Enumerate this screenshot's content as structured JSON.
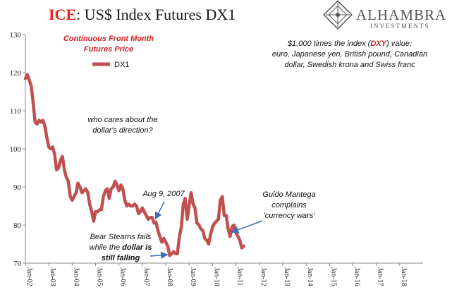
{
  "header": {
    "title_brand": "ICE",
    "title_rest": ": US$ Index Futures DX1"
  },
  "logo": {
    "name": "ALHAMBRA",
    "sub": "INVESTMENTS"
  },
  "notes": {
    "series_note_line1": "Continuous  Front Month",
    "series_note_line2": "Futures Price",
    "basket_line1_pre": "$1,000 times the index (",
    "basket_line1_dxy": "DXY",
    "basket_line1_post": ") value;",
    "basket_line2": "euro, Japanese yen, British pound, Canadian",
    "basket_line3": "dollar, Swedish krona and Swiss franc"
  },
  "chart_data": {
    "type": "line",
    "title": "ICE: US$ Index Futures DX1",
    "series": [
      {
        "name": "DX1",
        "color": "#c0504d",
        "points": [
          [
            "2002-01",
            118.5
          ],
          [
            "2002-02",
            119.5
          ],
          [
            "2002-03",
            118.0
          ],
          [
            "2002-04",
            116.5
          ],
          [
            "2002-05",
            112.0
          ],
          [
            "2002-06",
            107.0
          ],
          [
            "2002-07",
            106.5
          ],
          [
            "2002-08",
            107.5
          ],
          [
            "2002-09",
            107.0
          ],
          [
            "2002-10",
            107.5
          ],
          [
            "2002-11",
            106.0
          ],
          [
            "2002-12",
            103.0
          ],
          [
            "2003-01",
            100.5
          ],
          [
            "2003-02",
            100.0
          ],
          [
            "2003-03",
            100.5
          ],
          [
            "2003-04",
            98.5
          ],
          [
            "2003-05",
            94.5
          ],
          [
            "2003-06",
            95.0
          ],
          [
            "2003-07",
            97.0
          ],
          [
            "2003-08",
            98.0
          ],
          [
            "2003-09",
            94.5
          ],
          [
            "2003-10",
            92.5
          ],
          [
            "2003-11",
            91.5
          ],
          [
            "2003-12",
            87.5
          ],
          [
            "2004-01",
            86.5
          ],
          [
            "2004-02",
            87.5
          ],
          [
            "2004-03",
            88.5
          ],
          [
            "2004-04",
            91.0
          ],
          [
            "2004-05",
            90.0
          ],
          [
            "2004-06",
            88.5
          ],
          [
            "2004-07",
            89.0
          ],
          [
            "2004-08",
            89.5
          ],
          [
            "2004-09",
            88.5
          ],
          [
            "2004-10",
            85.5
          ],
          [
            "2004-11",
            83.5
          ],
          [
            "2004-12",
            81.0
          ],
          [
            "2005-01",
            83.5
          ],
          [
            "2005-02",
            83.5
          ],
          [
            "2005-03",
            84.0
          ],
          [
            "2005-04",
            84.0
          ],
          [
            "2005-05",
            87.5
          ],
          [
            "2005-06",
            89.0
          ],
          [
            "2005-07",
            89.5
          ],
          [
            "2005-08",
            87.0
          ],
          [
            "2005-09",
            89.5
          ],
          [
            "2005-10",
            90.0
          ],
          [
            "2005-11",
            91.5
          ],
          [
            "2005-12",
            90.5
          ],
          [
            "2006-01",
            89.0
          ],
          [
            "2006-02",
            90.5
          ],
          [
            "2006-03",
            89.5
          ],
          [
            "2006-04",
            86.5
          ],
          [
            "2006-05",
            85.0
          ],
          [
            "2006-06",
            85.5
          ],
          [
            "2006-07",
            85.0
          ],
          [
            "2006-08",
            85.0
          ],
          [
            "2006-09",
            85.5
          ],
          [
            "2006-10",
            85.0
          ],
          [
            "2006-11",
            83.0
          ],
          [
            "2006-12",
            83.5
          ],
          [
            "2007-01",
            84.5
          ],
          [
            "2007-02",
            83.5
          ],
          [
            "2007-03",
            82.5
          ],
          [
            "2007-04",
            81.5
          ],
          [
            "2007-05",
            82.0
          ],
          [
            "2007-06",
            82.0
          ],
          [
            "2007-07",
            80.5
          ],
          [
            "2007-08",
            80.8
          ],
          [
            "2007-09",
            78.5
          ],
          [
            "2007-10",
            77.0
          ],
          [
            "2007-11",
            75.5
          ],
          [
            "2007-12",
            76.5
          ],
          [
            "2008-01",
            75.5
          ],
          [
            "2008-02",
            74.5
          ],
          [
            "2008-03",
            72.0
          ],
          [
            "2008-04",
            72.5
          ],
          [
            "2008-05",
            73.0
          ],
          [
            "2008-06",
            72.5
          ],
          [
            "2008-07",
            72.5
          ],
          [
            "2008-08",
            77.0
          ],
          [
            "2008-09",
            79.5
          ],
          [
            "2008-10",
            85.5
          ],
          [
            "2008-11",
            87.0
          ],
          [
            "2008-12",
            81.5
          ],
          [
            "2009-01",
            85.0
          ],
          [
            "2009-02",
            88.5
          ],
          [
            "2009-03",
            85.5
          ],
          [
            "2009-04",
            84.5
          ],
          [
            "2009-05",
            80.5
          ],
          [
            "2009-06",
            80.0
          ],
          [
            "2009-07",
            79.0
          ],
          [
            "2009-08",
            78.5
          ],
          [
            "2009-09",
            76.5
          ],
          [
            "2009-10",
            76.0
          ],
          [
            "2009-11",
            75.0
          ],
          [
            "2009-12",
            77.5
          ],
          [
            "2010-01",
            79.5
          ],
          [
            "2010-02",
            80.5
          ],
          [
            "2010-03",
            81.0
          ],
          [
            "2010-04",
            81.5
          ],
          [
            "2010-05",
            86.5
          ],
          [
            "2010-06",
            87.5
          ],
          [
            "2010-07",
            82.5
          ],
          [
            "2010-08",
            82.5
          ],
          [
            "2010-09",
            79.0
          ],
          [
            "2010-10",
            77.0
          ],
          [
            "2010-11",
            79.5
          ],
          [
            "2010-12",
            80.0
          ],
          [
            "2011-01",
            78.0
          ],
          [
            "2011-02",
            77.0
          ],
          [
            "2011-03",
            76.0
          ],
          [
            "2011-04",
            74.0
          ],
          [
            "2011-05",
            74.5
          ]
        ]
      }
    ],
    "ylim": [
      70,
      130
    ],
    "yticks": [
      70,
      80,
      90,
      100,
      110,
      120,
      130
    ],
    "xlim": [
      "2002-01",
      "2019-01"
    ],
    "xticks": [
      "Jan-02",
      "Jan-03",
      "Jan-04",
      "Jan-05",
      "Jan-06",
      "Jan-07",
      "Jan-08",
      "Jan-09",
      "Jan-10",
      "Jan-11",
      "Jan-12",
      "Jan-13",
      "Jan-14",
      "Jan-15",
      "Jan-16",
      "Jan-17",
      "Jan-18"
    ],
    "legend": {
      "label": "DX1",
      "placement": "top-left"
    },
    "grid": false,
    "annotations": [
      {
        "key": "who_cares",
        "lines": [
          "who cares about the",
          "dollar's direction?"
        ]
      },
      {
        "key": "aug9",
        "lines": [
          "Aug 9, 2007"
        ],
        "arrow_to": [
          "2007-08",
          80.8
        ]
      },
      {
        "key": "bear",
        "lines": [
          "Bear Stearns fails",
          "while the dollar is",
          "still falling"
        ],
        "arrow_to": [
          "2008-03",
          72.0
        ]
      },
      {
        "key": "guido",
        "lines": [
          "Guido Mantega",
          "complains",
          "'currency wars'"
        ],
        "arrow_to": [
          "2010-09",
          79.0
        ]
      }
    ]
  }
}
